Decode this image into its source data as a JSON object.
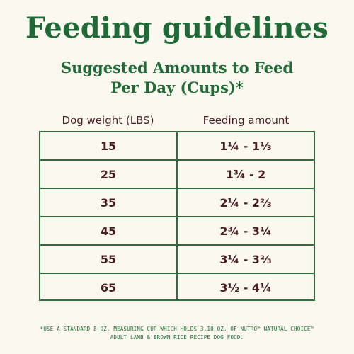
{
  "header": {
    "title": "Feeding guidelines",
    "subtitle_line1": "Suggested Amounts to Feed",
    "subtitle_line2": "Per Day (Cups)*"
  },
  "table": {
    "columns": [
      "Dog weight (LBS)",
      "Feeding amount"
    ],
    "rows": [
      {
        "weight": "15",
        "amount": "1¼ - 1⅓"
      },
      {
        "weight": "25",
        "amount": "1¾ - 2"
      },
      {
        "weight": "35",
        "amount": "2¼  - 2⅔"
      },
      {
        "weight": "45",
        "amount": "2¾ - 3¼"
      },
      {
        "weight": "55",
        "amount": "3¼ - 3⅔"
      },
      {
        "weight": "65",
        "amount": "3½ - 4¼"
      }
    ]
  },
  "footnote": {
    "line1": "*USE A STANDARD 8 OZ. MEASURING CUP WHICH HOLDS 3.10 OZ. OF NUTRO™ NATURAL CHOICE™",
    "line2": "ADULT LAMB & BROWN RICE RECIPE DOG FOOD."
  },
  "colors": {
    "background": "#fbf8f0",
    "green": "#1f6a36",
    "text_dark": "#4a1f24"
  }
}
